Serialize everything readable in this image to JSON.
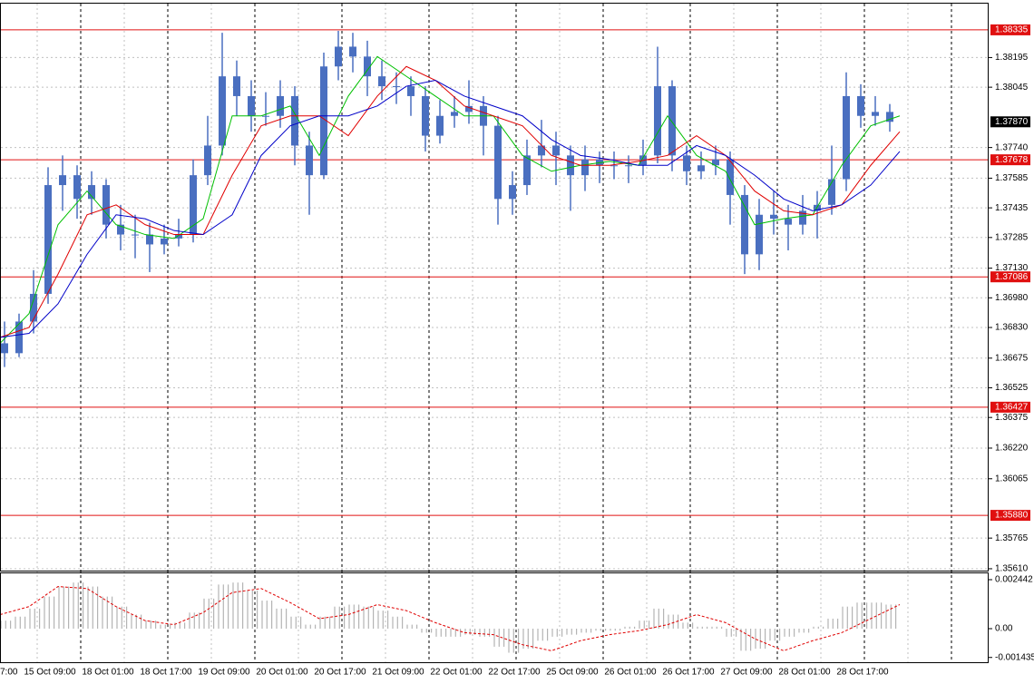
{
  "chart_data": {
    "type": "candlestick",
    "ylim": [
      1.35596,
      1.38486
    ],
    "yticks": [
      1.38195,
      1.38045,
      {
        "value": 1.3774,
        "label": "1.37740"
      },
      1.37585,
      1.37435,
      1.37285,
      {
        "value": 1.3713,
        "label": "1.37130"
      },
      {
        "value": 1.3698,
        "label": "1.36980"
      },
      {
        "value": 1.3683,
        "label": "1.36830"
      },
      1.36675,
      1.36525,
      1.36375,
      {
        "value": 1.3622,
        "label": "1.36220"
      },
      1.36065,
      1.35765,
      {
        "value": 1.3561,
        "label": "1.35610"
      }
    ],
    "grid": true,
    "candle_color": "#4a6fc0",
    "levels": [
      1.38335,
      1.37678,
      1.37086,
      1.36427,
      {
        "value": 1.3588,
        "label": "1.35880"
      }
    ],
    "level_color": "#e01010",
    "current_price": {
      "value": 1.3787,
      "label": "1.37870"
    },
    "xlabels": [
      "7:00",
      "15 Oct 09:00",
      "18 Oct 01:00",
      "18 Oct 17:00",
      "19 Oct 09:00",
      "20 Oct 01:00",
      "20 Oct 17:00",
      "21 Oct 09:00",
      "22 Oct 01:00",
      "22 Oct 17:00",
      "25 Oct 09:00",
      "26 Oct 01:00",
      "26 Oct 17:00",
      "27 Oct 09:00",
      "28 Oct 01:00",
      "28 Oct 17:00"
    ],
    "candles": [
      [
        1.3675,
        1.3686,
        1.3663,
        1.367
      ],
      [
        1.367,
        1.369,
        1.3668,
        1.3686
      ],
      [
        1.3686,
        1.3712,
        1.368,
        1.37
      ],
      [
        1.37,
        1.3764,
        1.3695,
        1.3755
      ],
      [
        1.3755,
        1.377,
        1.3742,
        1.376
      ],
      [
        1.376,
        1.3765,
        1.3738,
        1.3748
      ],
      [
        1.3748,
        1.3762,
        1.374,
        1.3755
      ],
      [
        1.3755,
        1.3758,
        1.3728,
        1.3735
      ],
      [
        1.3735,
        1.3745,
        1.3722,
        1.373
      ],
      [
        1.373,
        1.374,
        1.3718,
        1.373
      ],
      [
        1.373,
        1.3736,
        1.3711,
        1.3725
      ],
      [
        1.3725,
        1.3735,
        1.372,
        1.3728
      ],
      [
        1.3728,
        1.3738,
        1.3724,
        1.373
      ],
      [
        1.373,
        1.3768,
        1.3726,
        1.376
      ],
      [
        1.376,
        1.379,
        1.3755,
        1.3775
      ],
      [
        1.3775,
        1.3832,
        1.377,
        1.381
      ],
      [
        1.381,
        1.3818,
        1.379,
        1.38
      ],
      [
        1.38,
        1.3808,
        1.3782,
        1.379
      ],
      [
        1.379,
        1.3802,
        1.3785,
        1.379
      ],
      [
        1.379,
        1.3808,
        1.3784,
        1.38
      ],
      [
        1.38,
        1.3805,
        1.3765,
        1.3775
      ],
      [
        1.3775,
        1.3782,
        1.374,
        1.376
      ],
      [
        1.376,
        1.3822,
        1.3758,
        1.3815
      ],
      [
        1.3815,
        1.3833,
        1.3808,
        1.3825
      ],
      [
        1.3825,
        1.3832,
        1.3812,
        1.382
      ],
      [
        1.382,
        1.3828,
        1.38,
        1.381
      ],
      [
        1.381,
        1.3818,
        1.3798,
        1.3805
      ],
      [
        1.3805,
        1.3812,
        1.3796,
        1.3805
      ],
      [
        1.3805,
        1.381,
        1.379,
        1.38
      ],
      [
        1.38,
        1.3805,
        1.3772,
        1.378
      ],
      [
        1.378,
        1.3798,
        1.3776,
        1.379
      ],
      [
        1.379,
        1.38,
        1.3784,
        1.3792
      ],
      [
        1.3792,
        1.3808,
        1.3786,
        1.3795
      ],
      [
        1.3795,
        1.38,
        1.377,
        1.3785
      ],
      [
        1.3785,
        1.379,
        1.3735,
        1.3748
      ],
      [
        1.3748,
        1.3762,
        1.374,
        1.3755
      ],
      [
        1.3755,
        1.3778,
        1.375,
        1.377
      ],
      [
        1.377,
        1.3788,
        1.3764,
        1.3775
      ],
      [
        1.3775,
        1.3782,
        1.3755,
        1.377
      ],
      [
        1.377,
        1.3775,
        1.3742,
        1.376
      ],
      [
        1.376,
        1.3775,
        1.3752,
        1.3768
      ],
      [
        1.3768,
        1.3772,
        1.3756,
        1.3765
      ],
      [
        1.3765,
        1.3772,
        1.3758,
        1.3765
      ],
      [
        1.3765,
        1.377,
        1.3756,
        1.3765
      ],
      [
        1.3765,
        1.3778,
        1.376,
        1.377
      ],
      [
        1.377,
        1.3825,
        1.3766,
        1.3805
      ],
      [
        1.3805,
        1.3808,
        1.3762,
        1.377
      ],
      [
        1.377,
        1.3775,
        1.3755,
        1.3762
      ],
      [
        1.3762,
        1.3772,
        1.3758,
        1.3765
      ],
      [
        1.3765,
        1.3775,
        1.376,
        1.3768
      ],
      [
        1.3768,
        1.3772,
        1.3735,
        1.375
      ],
      [
        1.375,
        1.3755,
        1.371,
        1.372
      ],
      [
        1.372,
        1.3748,
        1.3712,
        1.374
      ],
      [
        1.374,
        1.3752,
        1.373,
        1.3738
      ],
      [
        1.3738,
        1.3745,
        1.3722,
        1.3735
      ],
      [
        1.3735,
        1.375,
        1.373,
        1.3742
      ],
      [
        1.3742,
        1.3752,
        1.3728,
        1.3745
      ],
      [
        1.3745,
        1.3775,
        1.374,
        1.3758
      ],
      [
        1.3758,
        1.3812,
        1.3752,
        1.38
      ],
      [
        1.38,
        1.3806,
        1.3784,
        1.379
      ],
      [
        1.379,
        1.38,
        1.3785,
        1.3792
      ],
      [
        1.3792,
        1.3796,
        1.3782,
        1.3787
      ]
    ],
    "series": [
      {
        "color": "#00c000",
        "values": [
          1.3675,
          1.369,
          1.3735,
          1.3752,
          1.3735,
          1.373,
          1.3728,
          1.3738,
          1.379,
          1.379,
          1.3795,
          1.377,
          1.38,
          1.382,
          1.381,
          1.38,
          1.379,
          1.379,
          1.377,
          1.3762,
          1.3765,
          1.3767,
          1.3765,
          1.379,
          1.377,
          1.3762,
          1.3735,
          1.3738,
          1.374,
          1.3765,
          1.3785,
          1.379
        ]
      },
      {
        "color": "#e00000",
        "values": [
          1.3678,
          1.3683,
          1.371,
          1.374,
          1.3745,
          1.3735,
          1.373,
          1.373,
          1.376,
          1.3785,
          1.379,
          1.379,
          1.378,
          1.38,
          1.3815,
          1.3808,
          1.3795,
          1.379,
          1.3785,
          1.377,
          1.3765,
          1.3765,
          1.3767,
          1.377,
          1.378,
          1.377,
          1.3752,
          1.3742,
          1.374,
          1.3745,
          1.3765,
          1.3782
        ]
      },
      {
        "color": "#0000c8",
        "values": [
          1.3678,
          1.368,
          1.3695,
          1.372,
          1.374,
          1.3738,
          1.3732,
          1.373,
          1.374,
          1.377,
          1.3785,
          1.379,
          1.379,
          1.3795,
          1.3805,
          1.3808,
          1.38,
          1.3795,
          1.379,
          1.3778,
          1.377,
          1.3768,
          1.3765,
          1.3765,
          1.3775,
          1.377,
          1.376,
          1.3748,
          1.3742,
          1.3745,
          1.3755,
          1.3772
        ]
      }
    ],
    "indicator": {
      "ylim": [
        -0.001673,
        0.002759
      ],
      "yticks": [
        0.002442,
        {
          "value": 0,
          "label": "0.00"
        },
        -0.001435
      ],
      "histogram_color": "#b4b4b4",
      "signal_color": "#e00000",
      "histogram": [
        0.0004,
        0.0006,
        0.001,
        0.0016,
        0.0021,
        0.0023,
        0.0021,
        0.0016,
        0.0011,
        0.0007,
        0.0004,
        0.0002,
        0.0003,
        0.0008,
        0.0015,
        0.0022,
        0.0023,
        0.0019,
        0.0014,
        0.001,
        0.0006,
        0.0002,
        0.0006,
        0.0011,
        0.0012,
        0.0011,
        0.0009,
        0.0006,
        0.0002,
        -0.0002,
        -0.0004,
        -0.0004,
        -0.0003,
        -0.0004,
        -0.0009,
        -0.0012,
        -0.001,
        -0.0006,
        -0.0004,
        -0.0003,
        -0.0002,
        -0.0001,
        -0.0001,
        0.0001,
        0.0004,
        0.001,
        0.0007,
        0.0003,
        0.0001,
        0.0001,
        -0.0004,
        -0.0011,
        -0.001,
        -0.0006,
        -0.0004,
        -0.0002,
        0.0001,
        0.0005,
        0.0011,
        0.0013,
        0.0013,
        0.0012
      ],
      "signal": [
        0.0007,
        0.0011,
        0.0021,
        0.002,
        0.0011,
        0.0004,
        0.0002,
        0.0008,
        0.0018,
        0.002,
        0.0013,
        0.0005,
        0.0007,
        0.0012,
        0.0009,
        0.0003,
        -0.0002,
        -0.0003,
        -0.0008,
        -0.0011,
        -0.0006,
        -0.0003,
        -0.0001,
        0.0002,
        0.0007,
        0.0003,
        -0.0005,
        -0.0011,
        -0.0006,
        -0.0002,
        0.0005,
        0.0012
      ]
    }
  }
}
